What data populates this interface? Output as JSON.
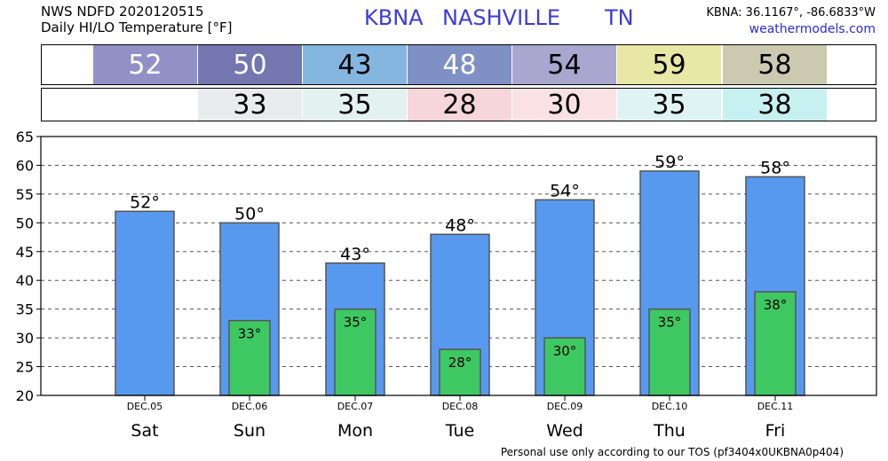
{
  "header": {
    "line1": "NWS NDFD 2020120515",
    "line2": "Daily HI/LO Temperature [°F]",
    "station_id": "KBNA",
    "city": "NASHVILLE",
    "state": "TN",
    "coords": "KBNA: 36.1167°, -86.6833°W",
    "site": "weathermodels.com"
  },
  "high_row": {
    "values": [
      "52",
      "50",
      "43",
      "48",
      "54",
      "59",
      "58"
    ],
    "colors": [
      "#9191c8",
      "#7476b0",
      "#85b6e0",
      "#7f90c4",
      "#a9a6cf",
      "#e8e7a4",
      "#cbcab0"
    ],
    "text_colors": [
      "#ffffff",
      "#ffffff",
      "#000000",
      "#ffffff",
      "#000000",
      "#000000",
      "#000000"
    ]
  },
  "low_row": {
    "values": [
      "",
      "33",
      "35",
      "28",
      "30",
      "35",
      "38"
    ],
    "colors": [
      "#ffffff",
      "#e9ecec",
      "#e3f1f1",
      "#f6d6da",
      "#fae2e4",
      "#e0f3f3",
      "#c7f0f1"
    ]
  },
  "chart_data": {
    "type": "bar",
    "categories": [
      "Sat",
      "Sun",
      "Mon",
      "Tue",
      "Wed",
      "Thu",
      "Fri"
    ],
    "dates": [
      "DEC.05",
      "DEC.06",
      "DEC.07",
      "DEC.08",
      "DEC.09",
      "DEC.10",
      "DEC.11"
    ],
    "series": [
      {
        "values": [
          52,
          50,
          43,
          48,
          54,
          59,
          58
        ],
        "color": "#5899f0",
        "labels": [
          "52°",
          "50°",
          "43°",
          "48°",
          "54°",
          "59°",
          "58°"
        ]
      },
      {
        "values": [
          null,
          33,
          35,
          28,
          30,
          35,
          38
        ],
        "color": "#3ec862",
        "labels": [
          "",
          "33°",
          "35°",
          "28°",
          "30°",
          "35°",
          "38°"
        ]
      }
    ],
    "ylim": [
      20,
      65
    ],
    "yticks": [
      20,
      25,
      30,
      35,
      40,
      45,
      50,
      55,
      60,
      65
    ],
    "grid": true
  },
  "footer": "Personal use only according to our TOS (pf3404x0UKBNA0p404)"
}
